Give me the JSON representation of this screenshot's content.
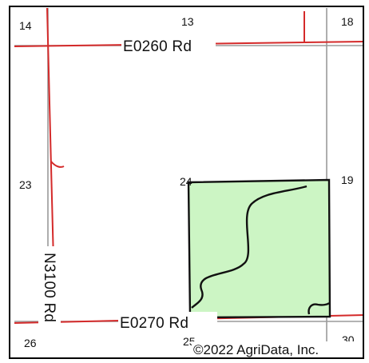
{
  "map": {
    "sections": {
      "s13": "13",
      "s14": "14",
      "s18": "18",
      "s19": "19",
      "s23": "23",
      "s24": "24",
      "s25": "25",
      "s26": "26",
      "s30": "30"
    },
    "roads": {
      "e0260": "E0260 Rd",
      "e0270": "E0270 Rd",
      "n3100": "N3100 Rd"
    },
    "copyright": "©2022 AgriData, Inc.",
    "colors": {
      "road": "#d42a2a",
      "section_line": "#9a9a9a",
      "field_fill": "#ccf5c4",
      "field_stroke": "#111111",
      "frame": "#000000",
      "background": "#ffffff"
    }
  }
}
